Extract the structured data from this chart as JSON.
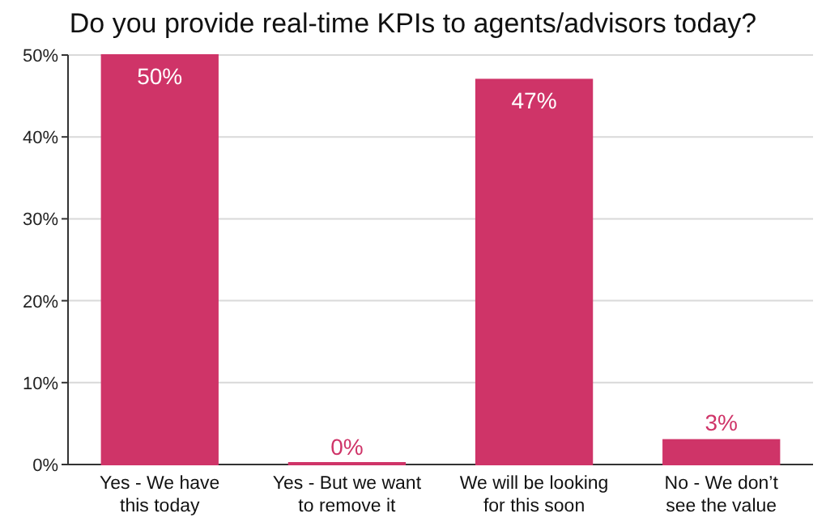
{
  "chart_data": {
    "type": "bar",
    "title": "Do you provide real-time KPIs to agents/advisors today?",
    "categories": [
      "Yes - We have this today",
      "Yes - But we want to remove it",
      "We will be looking for this soon",
      "No - We don’t see the value"
    ],
    "values": [
      50,
      0,
      47,
      3
    ],
    "color": "#cf3468",
    "value_labels": [
      "50%",
      "0%",
      "47%",
      "3%"
    ],
    "ylim": [
      0,
      50
    ],
    "yticks": [
      {
        "value": 0,
        "label": "0%"
      },
      {
        "value": 10,
        "label": "10%"
      },
      {
        "value": 20,
        "label": "20%"
      },
      {
        "value": 30,
        "label": "30%"
      },
      {
        "value": 40,
        "label": "40%"
      },
      {
        "value": 50,
        "label": "50%"
      }
    ],
    "grid": "y"
  }
}
